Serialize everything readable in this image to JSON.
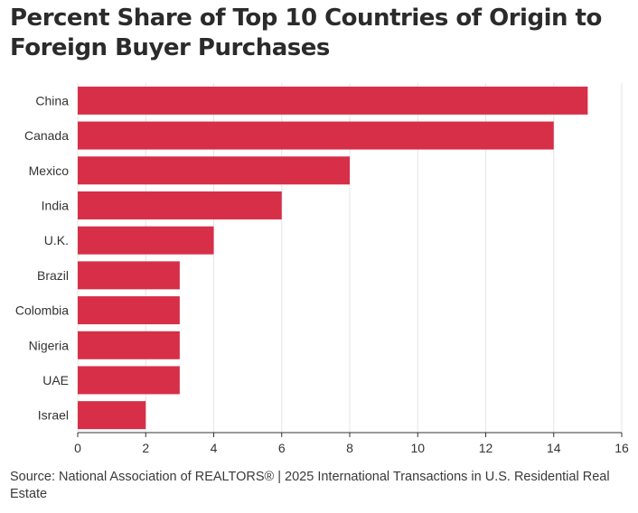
{
  "title": "Percent Share of Top 10 Countries of Origin to Foreign Buyer Purchases",
  "source": "Source: National Association of REALTORS® | 2025 International Transactions in U.S. Residential Real Estate",
  "colors": {
    "bar": "#d72f48",
    "grid": "#e6e6e6",
    "axis": "#333333"
  },
  "chart_data": {
    "type": "bar",
    "orientation": "horizontal",
    "title": "Percent Share of Top 10 Countries of Origin to Foreign Buyer Purchases",
    "xlabel": "",
    "ylabel": "",
    "categories": [
      "China",
      "Canada",
      "Mexico",
      "India",
      "U.K.",
      "Brazil",
      "Colombia",
      "Nigeria",
      "UAE",
      "Israel"
    ],
    "values": [
      15,
      14,
      8,
      6,
      4,
      3,
      3,
      3,
      3,
      2
    ],
    "xlim": [
      0,
      16
    ],
    "xticks": [
      0,
      2,
      4,
      6,
      8,
      10,
      12,
      14,
      16
    ],
    "grid": true,
    "legend": "none"
  }
}
